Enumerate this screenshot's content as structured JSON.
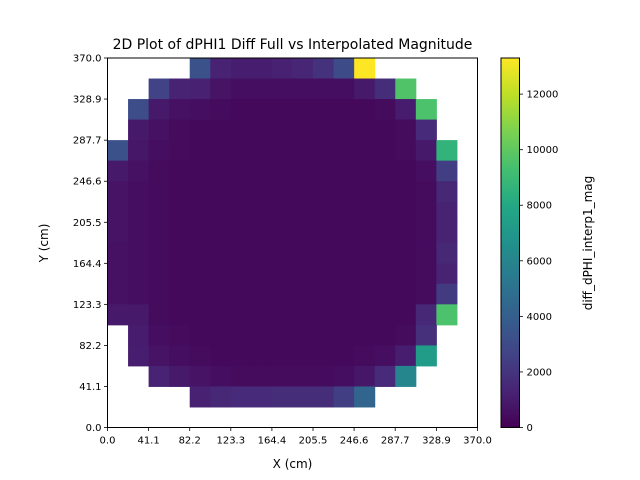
{
  "chart_data": {
    "type": "heatmap",
    "title": "2D Plot of dPHI1 Diff Full vs Interpolated Magnitude",
    "xlabel": "X (cm)",
    "ylabel": "Y (cm)",
    "colorbar_label": "diff_dPHI_interp1_mag",
    "colormap": "viridis",
    "xlim": [
      0.0,
      370.0
    ],
    "ylim": [
      0.0,
      370.0
    ],
    "clim": [
      0,
      13300
    ],
    "x_ticks": [
      "0.0",
      "41.1",
      "82.2",
      "123.3",
      "164.4",
      "205.5",
      "246.6",
      "287.7",
      "328.9",
      "370.0"
    ],
    "y_ticks": [
      "0.0",
      "41.1",
      "82.2",
      "123.3",
      "164.4",
      "205.5",
      "246.6",
      "287.7",
      "328.9",
      "370.0"
    ],
    "colorbar_ticks": [
      "0",
      "2000",
      "4000",
      "6000",
      "8000",
      "10000",
      "12000"
    ],
    "colorbar_tick_values": [
      0,
      2000,
      4000,
      6000,
      8000,
      10000,
      12000
    ],
    "grid": false,
    "bins": 18,
    "bin_width": 20.555,
    "values_top_row_first": [
      [
        null,
        null,
        null,
        null,
        3300,
        1300,
        1100,
        1100,
        1200,
        1400,
        1900,
        3000,
        13300,
        null,
        null,
        null,
        null,
        null
      ],
      [
        null,
        null,
        2600,
        1300,
        1200,
        700,
        500,
        500,
        500,
        500,
        500,
        500,
        900,
        1700,
        9600,
        null,
        null,
        null
      ],
      [
        null,
        3100,
        900,
        600,
        500,
        400,
        300,
        300,
        300,
        300,
        300,
        300,
        300,
        400,
        1000,
        9500,
        null,
        null
      ],
      [
        null,
        900,
        600,
        400,
        300,
        300,
        300,
        300,
        300,
        300,
        300,
        300,
        300,
        300,
        400,
        1600,
        null,
        null
      ],
      [
        3300,
        800,
        500,
        400,
        300,
        300,
        300,
        300,
        300,
        300,
        300,
        300,
        300,
        300,
        400,
        900,
        8600,
        null
      ],
      [
        900,
        600,
        400,
        300,
        300,
        300,
        300,
        300,
        300,
        300,
        300,
        300,
        300,
        300,
        300,
        500,
        2400,
        null
      ],
      [
        700,
        500,
        400,
        300,
        300,
        300,
        300,
        300,
        300,
        300,
        300,
        300,
        300,
        300,
        300,
        400,
        1500,
        null
      ],
      [
        700,
        500,
        400,
        300,
        300,
        300,
        300,
        300,
        300,
        300,
        300,
        300,
        300,
        300,
        300,
        400,
        1300,
        null
      ],
      [
        700,
        500,
        400,
        300,
        300,
        300,
        300,
        300,
        300,
        300,
        300,
        300,
        300,
        300,
        300,
        400,
        1300,
        null
      ],
      [
        600,
        500,
        400,
        300,
        300,
        300,
        300,
        300,
        300,
        300,
        300,
        300,
        300,
        300,
        300,
        400,
        1500,
        null
      ],
      [
        600,
        500,
        400,
        300,
        300,
        300,
        300,
        300,
        300,
        300,
        300,
        300,
        300,
        300,
        300,
        400,
        1300,
        null
      ],
      [
        600,
        500,
        400,
        300,
        300,
        300,
        300,
        300,
        300,
        300,
        300,
        300,
        300,
        300,
        300,
        400,
        2300,
        null
      ],
      [
        900,
        900,
        400,
        300,
        300,
        300,
        300,
        300,
        300,
        300,
        300,
        300,
        300,
        300,
        300,
        1500,
        9500,
        null
      ],
      [
        null,
        1000,
        500,
        400,
        300,
        300,
        300,
        300,
        300,
        300,
        300,
        300,
        300,
        300,
        400,
        1800,
        null,
        null
      ],
      [
        null,
        1100,
        700,
        500,
        400,
        300,
        300,
        300,
        300,
        300,
        300,
        300,
        400,
        500,
        1100,
        7300,
        null,
        null
      ],
      [
        null,
        null,
        1300,
        900,
        700,
        500,
        400,
        400,
        400,
        400,
        400,
        500,
        800,
        1600,
        6100,
        null,
        null,
        null
      ],
      [
        null,
        null,
        null,
        null,
        1200,
        1500,
        1600,
        1600,
        1700,
        1700,
        1700,
        2400,
        4300,
        null,
        null,
        null,
        null,
        null
      ],
      [
        null,
        null,
        null,
        null,
        null,
        null,
        null,
        null,
        null,
        null,
        null,
        null,
        null,
        null,
        null,
        null,
        null,
        null
      ]
    ]
  }
}
